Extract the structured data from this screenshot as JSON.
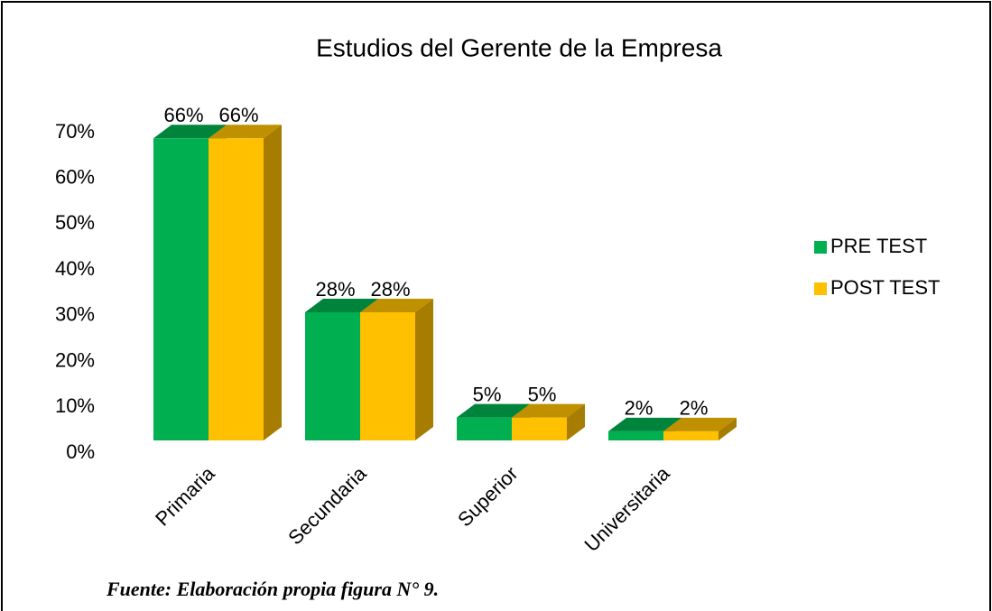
{
  "chart_data": {
    "type": "bar3d",
    "title": "Estudios del Gerente de la Empresa",
    "categories": [
      "Primaria",
      "Secundaria",
      "Superior",
      "Universitaria"
    ],
    "series": [
      {
        "name": "PRE TEST",
        "color": "#00b050",
        "values": [
          66,
          28,
          5,
          2
        ],
        "value_labels": [
          "66%",
          "28%",
          "5%",
          "2%"
        ]
      },
      {
        "name": "POST TEST",
        "color": "#ffc000",
        "values": [
          66,
          28,
          5,
          2
        ],
        "value_labels": [
          "66%",
          "28%",
          "5%",
          "2%"
        ]
      }
    ],
    "ylim": [
      0,
      70
    ],
    "yticks": [
      {
        "value": 0,
        "label": "0%"
      },
      {
        "value": 10,
        "label": "10%"
      },
      {
        "value": 20,
        "label": "20%"
      },
      {
        "value": 30,
        "label": "30%"
      },
      {
        "value": 40,
        "label": "40%"
      },
      {
        "value": 50,
        "label": "50%"
      },
      {
        "value": 60,
        "label": "60%"
      },
      {
        "value": 70,
        "label": "70%"
      }
    ],
    "legend": "right",
    "source": "Fuente: Elaboración propia figura N° 9."
  }
}
